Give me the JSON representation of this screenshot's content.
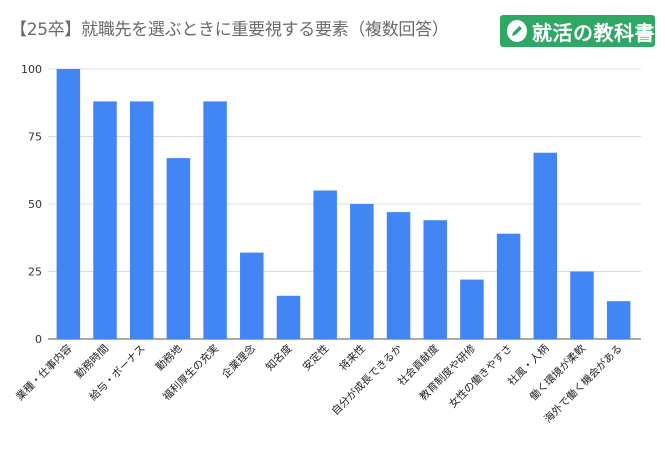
{
  "header": {
    "title": "【25卒】就職先を選ぶときに重要視する要素（複数回答）",
    "logo_text": "就活の教科書",
    "logo_icon": "pencil-icon",
    "logo_color": "#2fa866"
  },
  "chart_data": {
    "type": "bar",
    "categories": [
      "業種・仕事内容",
      "勤務時間",
      "給与・ボーナス",
      "勤務地",
      "福利厚生の充実",
      "企業理念",
      "知名度",
      "安定性",
      "将来性",
      "自分が成長できるか",
      "社会貢献度",
      "教育制度や研修",
      "女性の働きやすさ",
      "社風・人柄",
      "働く環境が柔軟",
      "海外で働く機会がある"
    ],
    "values": [
      100,
      88,
      88,
      67,
      88,
      32,
      16,
      55,
      50,
      47,
      44,
      22,
      39,
      69,
      25,
      14
    ],
    "yticks": [
      0,
      25,
      50,
      75,
      100
    ],
    "ylim": [
      0,
      100
    ],
    "bar_color": "#4285f4",
    "grid": true
  }
}
